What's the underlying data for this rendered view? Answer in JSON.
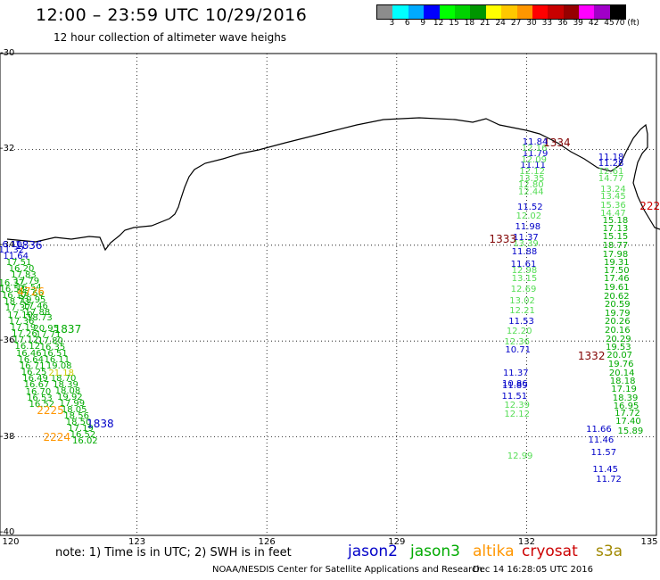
{
  "header": {
    "title": "12:00 – 23:59 UTC 10/29/2016",
    "subtitle": "12 hour collection of altimeter wave heighs"
  },
  "scale": {
    "labels": [
      "3",
      "6",
      "9",
      "12",
      "15",
      "18",
      "21",
      "24",
      "27",
      "30",
      "33",
      "36",
      "39",
      "42",
      "45",
      "70 (ft)"
    ],
    "colors": [
      "#8c8c8c",
      "#00ffff",
      "#00aaff",
      "#0000ff",
      "#00ff00",
      "#00d200",
      "#009600",
      "#ffff00",
      "#ffc800",
      "#ff9600",
      "#ff0000",
      "#c80000",
      "#960000",
      "#ff00ff",
      "#a000c8",
      "#000000"
    ]
  },
  "axes": {
    "lat_labels": [
      "-30",
      "-32",
      "-34",
      "-36",
      "-38",
      "-40"
    ],
    "lon_labels": [
      "120",
      "123",
      "126",
      "129",
      "132",
      "135"
    ]
  },
  "passes": [
    {
      "satellite": "jason2",
      "color": "#0000c8",
      "time": {
        "text": "1836",
        "lon": 120.5,
        "lat": -34.0
      },
      "values": [
        {
          "v": "16.10",
          "lon": 120.05,
          "lat": -34.0
        },
        {
          "v": "11.32",
          "lon": 120.1,
          "lat": -34.12
        },
        {
          "v": "11.64",
          "lon": 120.2,
          "lat": -34.25
        }
      ]
    },
    {
      "satellite": "jason3",
      "color": "#00aa00",
      "time": null,
      "values": [
        {
          "v": "17.51",
          "lon": 120.27,
          "lat": -34.38
        },
        {
          "v": "16.20",
          "lon": 120.33,
          "lat": -34.5
        },
        {
          "v": "17.83",
          "lon": 120.38,
          "lat": -34.63
        },
        {
          "v": "17.79",
          "lon": 120.45,
          "lat": -34.77
        },
        {
          "v": "16.54",
          "lon": 120.5,
          "lat": -34.9
        },
        {
          "v": "18.66",
          "lon": 120.55,
          "lat": -35.02
        },
        {
          "v": "19.95",
          "lon": 120.6,
          "lat": -35.15
        },
        {
          "v": "17.46",
          "lon": 120.65,
          "lat": -35.28
        },
        {
          "v": "17.88",
          "lon": 120.7,
          "lat": -35.42
        },
        {
          "v": "18.73",
          "lon": 120.75,
          "lat": -35.53
        }
      ]
    },
    {
      "satellite": "jason3",
      "color": "#00aa00",
      "time": null,
      "values": [
        {
          "v": "16.37",
          "lon": 120.1,
          "lat": -34.8
        },
        {
          "v": "16.53",
          "lon": 120.12,
          "lat": -34.94
        },
        {
          "v": "16.17",
          "lon": 120.17,
          "lat": -35.07
        },
        {
          "v": "18.73",
          "lon": 120.22,
          "lat": -35.2
        },
        {
          "v": "17.37",
          "lon": 120.25,
          "lat": -35.33
        },
        {
          "v": "17.10",
          "lon": 120.3,
          "lat": -35.47
        },
        {
          "v": "17.36",
          "lon": 120.33,
          "lat": -35.6
        },
        {
          "v": "17.19",
          "lon": 120.37,
          "lat": -35.73
        },
        {
          "v": "17.26",
          "lon": 120.4,
          "lat": -35.87
        },
        {
          "v": "17.12",
          "lon": 120.43,
          "lat": -36.0
        },
        {
          "v": "16.12",
          "lon": 120.47,
          "lat": -36.13
        },
        {
          "v": "16.46",
          "lon": 120.5,
          "lat": -36.27
        },
        {
          "v": "16.64",
          "lon": 120.55,
          "lat": -36.4
        },
        {
          "v": "16.71",
          "lon": 120.58,
          "lat": -36.53
        },
        {
          "v": "16.25",
          "lon": 120.62,
          "lat": -36.67
        },
        {
          "v": "16.49",
          "lon": 120.65,
          "lat": -36.8
        },
        {
          "v": "16.67",
          "lon": 120.68,
          "lat": -36.93
        },
        {
          "v": "16.70",
          "lon": 120.72,
          "lat": -37.07
        },
        {
          "v": "16.53",
          "lon": 120.75,
          "lat": -37.2
        },
        {
          "v": "16.52",
          "lon": 120.8,
          "lat": -37.33
        }
      ]
    },
    {
      "satellite": "altika",
      "color": "#ff9600",
      "time": {
        "text": "4726",
        "lon": 120.55,
        "lat": -34.98
      },
      "values": []
    },
    {
      "satellite": "jason3",
      "color": "#00aa00",
      "time": {
        "text": "1837",
        "lon": 121.4,
        "lat": -35.75
      },
      "values": [
        {
          "v": "20.95",
          "lon": 120.9,
          "lat": -35.76
        },
        {
          "v": "17.71",
          "lon": 120.95,
          "lat": -35.89
        },
        {
          "v": "17.80",
          "lon": 121.0,
          "lat": -36.02
        },
        {
          "v": "16.35",
          "lon": 121.05,
          "lat": -36.15
        },
        {
          "v": "16.51",
          "lon": 121.1,
          "lat": -36.28
        },
        {
          "v": "16.11",
          "lon": 121.15,
          "lat": -36.41
        },
        {
          "v": "19.08",
          "lon": 121.2,
          "lat": -36.54
        },
        {
          "v": "18.70",
          "lon": 121.3,
          "lat": -36.8
        },
        {
          "v": "18.39",
          "lon": 121.35,
          "lat": -36.93
        },
        {
          "v": "18.08",
          "lon": 121.4,
          "lat": -37.06
        },
        {
          "v": "19.92",
          "lon": 121.45,
          "lat": -37.19
        },
        {
          "v": "17.99",
          "lon": 121.5,
          "lat": -37.32
        },
        {
          "v": "18.05",
          "lon": 121.55,
          "lat": -37.45
        },
        {
          "v": "18.56",
          "lon": 121.6,
          "lat": -37.58
        },
        {
          "v": "18.50",
          "lon": 121.65,
          "lat": -37.71
        },
        {
          "v": "17.19",
          "lon": 121.7,
          "lat": -37.84
        },
        {
          "v": "16.52",
          "lon": 121.75,
          "lat": -37.97
        },
        {
          "v": "16.02",
          "lon": 121.8,
          "lat": -38.1
        }
      ]
    },
    {
      "satellite": "s3a",
      "color": "#cccc00",
      "time": null,
      "values": [
        {
          "v": "21.18",
          "lon": 121.25,
          "lat": -36.68
        }
      ]
    },
    {
      "satellite": "altika",
      "color": "#ff9600",
      "time": {
        "text": "2225",
        "lon": 121.0,
        "lat": -37.45
      },
      "values": []
    },
    {
      "satellite": "altika",
      "color": "#ff9600",
      "time": {
        "text": "2224",
        "lon": 121.15,
        "lat": -38.0
      },
      "values": []
    },
    {
      "satellite": "jason2",
      "color": "#0000c8",
      "time": {
        "text": "1838",
        "lon": 122.15,
        "lat": -37.72
      },
      "values": []
    },
    {
      "satellite": "cryosat",
      "color": "#800000",
      "time": {
        "text": "1334",
        "lon": 132.7,
        "lat": -31.87
      },
      "values": []
    },
    {
      "satellite": "jason2",
      "color": "#0000c8",
      "time": null,
      "values": [
        {
          "v": "11.84",
          "lon": 132.2,
          "lat": -31.87
        },
        {
          "v": "11.79",
          "lon": 132.2,
          "lat": -32.11
        },
        {
          "v": "11.11",
          "lon": 132.15,
          "lat": -32.35
        },
        {
          "v": "11.52",
          "lon": 132.08,
          "lat": -33.22
        },
        {
          "v": "11.98",
          "lon": 132.03,
          "lat": -33.63
        },
        {
          "v": "11.37",
          "lon": 131.98,
          "lat": -33.85
        },
        {
          "v": "11.88",
          "lon": 131.95,
          "lat": -34.15
        },
        {
          "v": "11.61",
          "lon": 131.93,
          "lat": -34.42
        },
        {
          "v": "11.53",
          "lon": 131.88,
          "lat": -35.6
        },
        {
          "v": "10.71",
          "lon": 131.8,
          "lat": -36.2
        },
        {
          "v": "11.37",
          "lon": 131.75,
          "lat": -36.68
        },
        {
          "v": "10.86",
          "lon": 131.73,
          "lat": -36.9
        },
        {
          "v": "11.89",
          "lon": 131.73,
          "lat": -36.95
        },
        {
          "v": "11.51",
          "lon": 131.72,
          "lat": -37.17
        }
      ]
    },
    {
      "satellite": "jason3",
      "color": "#55dd55",
      "time": null,
      "values": [
        {
          "v": "12.16",
          "lon": 132.18,
          "lat": -31.99
        },
        {
          "v": "12.09",
          "lon": 132.17,
          "lat": -32.23
        },
        {
          "v": "12.12",
          "lon": 132.13,
          "lat": -32.48
        },
        {
          "v": "13.35",
          "lon": 132.12,
          "lat": -32.62
        },
        {
          "v": "12.80",
          "lon": 132.1,
          "lat": -32.76
        },
        {
          "v": "12.44",
          "lon": 132.1,
          "lat": -32.9
        },
        {
          "v": "12.02",
          "lon": 132.05,
          "lat": -33.4
        },
        {
          "v": "13.39",
          "lon": 131.98,
          "lat": -33.99
        },
        {
          "v": "12.98",
          "lon": 131.95,
          "lat": -34.55
        },
        {
          "v": "13.15",
          "lon": 131.95,
          "lat": -34.72
        },
        {
          "v": "12.69",
          "lon": 131.93,
          "lat": -34.93
        },
        {
          "v": "13.02",
          "lon": 131.9,
          "lat": -35.17
        },
        {
          "v": "12.21",
          "lon": 131.9,
          "lat": -35.38
        },
        {
          "v": "12.20",
          "lon": 131.83,
          "lat": -35.81
        },
        {
          "v": "12.36",
          "lon": 131.78,
          "lat": -36.03
        },
        {
          "v": "12.39",
          "lon": 131.78,
          "lat": -37.35
        },
        {
          "v": "12.12",
          "lon": 131.78,
          "lat": -37.55
        },
        {
          "v": "12.99",
          "lon": 131.85,
          "lat": -38.41
        }
      ]
    },
    {
      "satellite": "cryosat",
      "color": "#800000",
      "time": {
        "text": "1333",
        "lon": 131.45,
        "lat": -33.87
      },
      "values": []
    },
    {
      "satellite": "jason2",
      "color": "#0000c8",
      "time": null,
      "values": [
        {
          "v": "11.18",
          "lon": 133.95,
          "lat": -32.17
        },
        {
          "v": "11.28",
          "lon": 133.95,
          "lat": -32.3
        },
        {
          "v": "11.66",
          "lon": 133.67,
          "lat": -37.85
        },
        {
          "v": "11.46",
          "lon": 133.72,
          "lat": -38.08
        },
        {
          "v": "11.57",
          "lon": 133.78,
          "lat": -38.34
        },
        {
          "v": "11.45",
          "lon": 133.82,
          "lat": -38.69
        },
        {
          "v": "11.72",
          "lon": 133.9,
          "lat": -38.9
        }
      ]
    },
    {
      "satellite": "jason3",
      "color": "#55dd55",
      "time": null,
      "values": [
        {
          "v": "12.61",
          "lon": 133.95,
          "lat": -32.47
        },
        {
          "v": "14.77",
          "lon": 133.95,
          "lat": -32.63
        },
        {
          "v": "13.24",
          "lon": 134.0,
          "lat": -32.84
        },
        {
          "v": "13.45",
          "lon": 134.0,
          "lat": -33.0
        },
        {
          "v": "15.36",
          "lon": 134.0,
          "lat": -33.18
        },
        {
          "v": "14.47",
          "lon": 134.0,
          "lat": -33.36
        }
      ]
    },
    {
      "satellite": "jason3",
      "color": "#00aa00",
      "time": null,
      "values": [
        {
          "v": "15.18",
          "lon": 134.05,
          "lat": -33.5
        },
        {
          "v": "17.13",
          "lon": 134.05,
          "lat": -33.67
        },
        {
          "v": "15.15",
          "lon": 134.05,
          "lat": -33.84
        },
        {
          "v": "18.77",
          "lon": 134.05,
          "lat": -34.02
        },
        {
          "v": "17.98",
          "lon": 134.05,
          "lat": -34.2
        },
        {
          "v": "19.31",
          "lon": 134.08,
          "lat": -34.38
        },
        {
          "v": "17.50",
          "lon": 134.08,
          "lat": -34.55
        },
        {
          "v": "17.46",
          "lon": 134.08,
          "lat": -34.72
        },
        {
          "v": "19.61",
          "lon": 134.08,
          "lat": -34.9
        },
        {
          "v": "20.62",
          "lon": 134.08,
          "lat": -35.08
        },
        {
          "v": "20.59",
          "lon": 134.1,
          "lat": -35.25
        },
        {
          "v": "19.79",
          "lon": 134.1,
          "lat": -35.44
        },
        {
          "v": "20.26",
          "lon": 134.1,
          "lat": -35.61
        },
        {
          "v": "20.16",
          "lon": 134.1,
          "lat": -35.79
        },
        {
          "v": "20.29",
          "lon": 134.12,
          "lat": -35.97
        },
        {
          "v": "19.53",
          "lon": 134.12,
          "lat": -36.15
        },
        {
          "v": "20.07",
          "lon": 134.15,
          "lat": -36.32
        },
        {
          "v": "19.76",
          "lon": 134.18,
          "lat": -36.5
        },
        {
          "v": "20.14",
          "lon": 134.2,
          "lat": -36.68
        },
        {
          "v": "18.18",
          "lon": 134.22,
          "lat": -36.85
        },
        {
          "v": "17.19",
          "lon": 134.25,
          "lat": -37.02
        },
        {
          "v": "18.39",
          "lon": 134.28,
          "lat": -37.2
        },
        {
          "v": "16.95",
          "lon": 134.3,
          "lat": -37.37
        },
        {
          "v": "17.72",
          "lon": 134.33,
          "lat": -37.53
        },
        {
          "v": "17.40",
          "lon": 134.35,
          "lat": -37.7
        },
        {
          "v": "15.89",
          "lon": 134.4,
          "lat": -37.9
        }
      ]
    },
    {
      "satellite": "cryosat",
      "color": "#cc0000",
      "time": {
        "text": "222",
        "lon": 134.85,
        "lat": -33.18
      },
      "values": []
    },
    {
      "satellite": "cryosat",
      "color": "#800000",
      "time": {
        "text": "1332",
        "lon": 133.5,
        "lat": -36.32
      },
      "values": []
    }
  ],
  "footer": {
    "note": "note: 1) Time is in UTC; 2) SWH is in feet",
    "legend": [
      {
        "label": "jason2",
        "color": "#0000c8"
      },
      {
        "label": "jason3",
        "color": "#00aa00"
      },
      {
        "label": "altika",
        "color": "#ff9600"
      },
      {
        "label": "cryosat",
        "color": "#cc0000"
      },
      {
        "label": "s3a",
        "color": "#a08800"
      }
    ],
    "credit": "NOAA/NESDIS Center for Satellite Applications and Research",
    "stamp": "Dec 14 16:28:05 UTC 2016"
  }
}
